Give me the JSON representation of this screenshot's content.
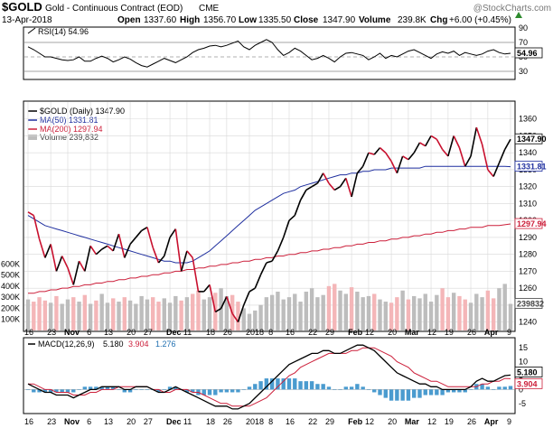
{
  "header": {
    "symbol": "$GOLD",
    "name": "Gold - Continuous Contract (EOD)",
    "exchange": "CME",
    "watermark": "@StockCharts.com",
    "date": "13-Apr-2018",
    "quote": {
      "open_label": "Open",
      "open": "1337.60",
      "high_label": "High",
      "high": "1356.70",
      "low_label": "Low",
      "low": "1335.50",
      "close_label": "Close",
      "close": "1347.90",
      "volume_label": "Volume",
      "volume": "239.8K",
      "chg_label": "Chg",
      "chg": "+6.00 (+0.45%)"
    }
  },
  "colors": {
    "price": "#000000",
    "price_down": "#c8102e",
    "ma50": "#1f2f9f",
    "ma200": "#cc1f3a",
    "volume_up": "#bdbdbd",
    "volume_down": "#f4b6b8",
    "macd_hist": "#4a9bcf",
    "grid": "#d8d8d8"
  },
  "chart_data": [
    {
      "type": "line",
      "panel": "rsi",
      "legend": "RSI(14) 54.96",
      "last_value_label": "54.96",
      "ylim": [
        20,
        90
      ],
      "reference_lines": [
        30,
        70
      ],
      "y_ticks": [
        30,
        50,
        70,
        90
      ],
      "values": [
        64,
        60,
        55,
        50,
        50,
        48,
        46,
        45,
        46,
        50,
        44,
        44,
        48,
        51,
        48,
        43,
        46,
        50,
        47,
        42,
        38,
        36,
        40,
        44,
        48,
        45,
        42,
        46,
        50,
        56,
        60,
        62,
        65,
        66,
        64,
        66,
        69,
        72,
        64,
        60,
        66,
        70,
        74,
        70,
        60,
        52,
        56,
        62,
        58,
        52,
        46,
        48,
        52,
        48,
        43,
        50,
        55,
        56,
        54,
        52,
        46,
        50,
        55,
        48,
        52,
        50,
        54,
        58,
        60,
        56,
        52,
        48,
        54,
        57,
        55,
        58,
        52,
        56,
        54,
        52,
        54,
        58,
        60,
        56,
        54,
        55
      ]
    },
    {
      "type": "line",
      "panel": "price",
      "title": "$GOLD (Daily) 1347.90",
      "x_tick_labels": [
        "16",
        "23",
        "Nov",
        "6",
        "13",
        "20",
        "27",
        "Dec",
        "11",
        "18",
        "26",
        "2018",
        "8",
        "16",
        "22",
        "29",
        "Feb",
        "12",
        "20",
        "Mar",
        "12",
        "19",
        "26",
        "Apr",
        "9"
      ],
      "ylim": [
        1235,
        1370
      ],
      "y_ticks": [
        1240,
        1250,
        1260,
        1270,
        1280,
        1290,
        1300,
        1310,
        1320,
        1330,
        1340,
        1350,
        1360
      ],
      "series": [
        {
          "name": "$GOLD (Daily) 1347.90",
          "last_label": "1347.90",
          "values": [
            1305,
            1303,
            1289,
            1278,
            1286,
            1270,
            1279,
            1272,
            1262,
            1276,
            1270,
            1285,
            1280,
            1283,
            1285,
            1282,
            1292,
            1278,
            1286,
            1290,
            1294,
            1296,
            1284,
            1275,
            1279,
            1290,
            1295,
            1270,
            1282,
            1278,
            1258,
            1258,
            1262,
            1246,
            1248,
            1255,
            1245,
            1240,
            1250,
            1258,
            1260,
            1268,
            1275,
            1276,
            1282,
            1290,
            1300,
            1303,
            1312,
            1318,
            1320,
            1322,
            1328,
            1322,
            1318,
            1320,
            1325,
            1314,
            1328,
            1332,
            1340,
            1339,
            1343,
            1340,
            1335,
            1328,
            1338,
            1336,
            1340,
            1346,
            1344,
            1350,
            1348,
            1342,
            1338,
            1350,
            1343,
            1332,
            1338,
            1355,
            1345,
            1330,
            1326,
            1334,
            1342,
            1348
          ]
        },
        {
          "name": "MA(50) 1331.81",
          "last_label": "1331.81",
          "values": [
            1303,
            1301,
            1299,
            1297,
            1296,
            1295,
            1294,
            1293,
            1292,
            1291,
            1290,
            1289,
            1288,
            1287,
            1286,
            1285,
            1284,
            1283,
            1282,
            1281,
            1280,
            1279,
            1278,
            1277,
            1276,
            1276,
            1275,
            1275,
            1275,
            1276,
            1278,
            1280,
            1282,
            1285,
            1288,
            1291,
            1294,
            1297,
            1300,
            1303,
            1306,
            1308,
            1310,
            1312,
            1314,
            1316,
            1317,
            1318,
            1320,
            1321,
            1322,
            1323,
            1324,
            1325,
            1326,
            1327,
            1327,
            1328,
            1328,
            1329,
            1329,
            1330,
            1330,
            1330,
            1331,
            1331,
            1331,
            1331,
            1331,
            1331,
            1332,
            1332,
            1332,
            1332,
            1332,
            1332,
            1332,
            1332,
            1332,
            1332,
            1332,
            1332,
            1332,
            1332,
            1332,
            1331.81
          ]
        },
        {
          "name": "MA(200) 1297.94",
          "last_label": "1297.94",
          "values": [
            1257,
            1257,
            1258,
            1258,
            1259,
            1259,
            1260,
            1260,
            1261,
            1261,
            1262,
            1262,
            1263,
            1263,
            1264,
            1264,
            1265,
            1265,
            1266,
            1266,
            1267,
            1267,
            1268,
            1268,
            1269,
            1269,
            1270,
            1270,
            1271,
            1271,
            1272,
            1272,
            1273,
            1273,
            1274,
            1274,
            1275,
            1275,
            1276,
            1276,
            1277,
            1277,
            1278,
            1278,
            1279,
            1279,
            1280,
            1280,
            1281,
            1281,
            1282,
            1282,
            1283,
            1283,
            1284,
            1284,
            1285,
            1285,
            1286,
            1286,
            1287,
            1287,
            1288,
            1288,
            1289,
            1289,
            1290,
            1290,
            1291,
            1291,
            1292,
            1292,
            1293,
            1293,
            1294,
            1294,
            1295,
            1295,
            1296,
            1296,
            1296,
            1297,
            1297,
            1297,
            1297.5,
            1297.94
          ]
        },
        {
          "name": "Volume 239,832",
          "last_label": "239832",
          "ylim_volume": [
            0,
            700000
          ],
          "volume_ticks": [
            "100K",
            "200K",
            "300K",
            "400K",
            "500K",
            "600K"
          ],
          "values": [
            280000,
            260000,
            300000,
            270000,
            250000,
            310000,
            240000,
            280000,
            300000,
            260000,
            320000,
            240000,
            270000,
            330000,
            250000,
            290000,
            260000,
            300000,
            270000,
            240000,
            310000,
            280000,
            300000,
            260000,
            290000,
            250000,
            310000,
            270000,
            300000,
            330000,
            360000,
            280000,
            300000,
            340000,
            380000,
            310000,
            320000,
            260000,
            200000,
            150000,
            180000,
            230000,
            300000,
            320000,
            350000,
            280000,
            300000,
            330000,
            260000,
            350000,
            380000,
            300000,
            320000,
            400000,
            420000,
            360000,
            330000,
            390000,
            350000,
            300000,
            310000,
            330000,
            280000,
            260000,
            250000,
            300000,
            360000,
            280000,
            310000,
            290000,
            330000,
            260000,
            320000,
            380000,
            300000,
            340000,
            310000,
            280000,
            250000,
            330000,
            300000,
            360000,
            290000,
            380000,
            420000,
            239832
          ],
          "down_days": [
            1,
            2,
            3,
            5,
            8,
            10,
            12,
            15,
            17,
            22,
            23,
            27,
            29,
            30,
            33,
            36,
            37,
            53,
            54,
            57,
            61,
            64,
            65,
            67,
            73,
            74,
            76,
            77,
            81,
            82
          ]
        }
      ]
    },
    {
      "type": "bar",
      "panel": "macd",
      "legend": [
        "MACD(12,26,9)",
        "5.180",
        "3.904",
        "1.276"
      ],
      "last_labels": [
        "5.180",
        "3.904"
      ],
      "ylim": [
        -8,
        18
      ],
      "y_ticks": [
        -5,
        0,
        5,
        10,
        15
      ],
      "series": [
        {
          "name": "MACD(12,26,9) 5.180",
          "values": [
            2,
            1,
            0,
            -1,
            -1,
            -2,
            -2,
            -2,
            -3,
            -2,
            -1,
            0,
            0,
            1,
            1,
            1,
            1,
            0,
            0,
            1,
            1,
            1,
            0,
            -1,
            -1,
            0,
            1,
            0,
            -1,
            -2,
            -3,
            -4,
            -5,
            -6,
            -6,
            -6,
            -7,
            -7,
            -6,
            -5,
            -3,
            -1,
            1,
            3,
            5,
            7,
            9,
            10,
            11,
            12,
            13,
            13,
            14,
            14,
            13,
            13,
            14,
            15,
            16,
            16,
            15,
            14,
            12,
            10,
            8,
            6,
            5,
            4,
            3,
            2,
            2,
            1,
            1,
            0,
            0,
            0,
            0,
            0,
            1,
            3,
            4,
            3,
            3,
            4,
            5,
            5.18
          ]
        },
        {
          "name": "3.904",
          "values": [
            2,
            2,
            1,
            0,
            0,
            -1,
            -1,
            -1,
            -2,
            -2,
            -2,
            -1,
            -1,
            0,
            0,
            0,
            1,
            1,
            1,
            1,
            1,
            1,
            0,
            0,
            -1,
            -1,
            0,
            0,
            0,
            -1,
            -1,
            -2,
            -3,
            -4,
            -5,
            -5,
            -6,
            -6,
            -6,
            -6,
            -5,
            -4,
            -3,
            -1,
            1,
            3,
            5,
            6,
            8,
            9,
            10,
            11,
            12,
            13,
            13,
            13,
            13,
            14,
            14,
            15,
            15,
            15,
            14,
            13,
            12,
            10,
            9,
            8,
            6,
            5,
            4,
            3,
            3,
            2,
            1,
            1,
            1,
            1,
            1,
            1,
            2,
            2,
            3,
            3,
            4,
            3.904
          ]
        },
        {
          "name": "1.276",
          "values": [
            0,
            -1,
            -1,
            -1,
            -1,
            -1,
            -1,
            -1,
            -1,
            0,
            1,
            1,
            1,
            1,
            1,
            1,
            0,
            -1,
            -1,
            0,
            0,
            0,
            0,
            -1,
            0,
            1,
            1,
            0,
            -1,
            -1,
            -2,
            -2,
            -2,
            -2,
            -1,
            -1,
            -1,
            -1,
            0,
            1,
            2,
            3,
            4,
            4,
            4,
            4,
            4,
            4,
            3,
            3,
            3,
            2,
            2,
            1,
            0,
            0,
            1,
            1,
            2,
            1,
            0,
            -1,
            -2,
            -3,
            -4,
            -4,
            -4,
            -4,
            -3,
            -3,
            -2,
            -2,
            -2,
            -2,
            -1,
            -1,
            -1,
            -1,
            0,
            2,
            2,
            1,
            0,
            1,
            1,
            1.276
          ]
        }
      ]
    }
  ]
}
